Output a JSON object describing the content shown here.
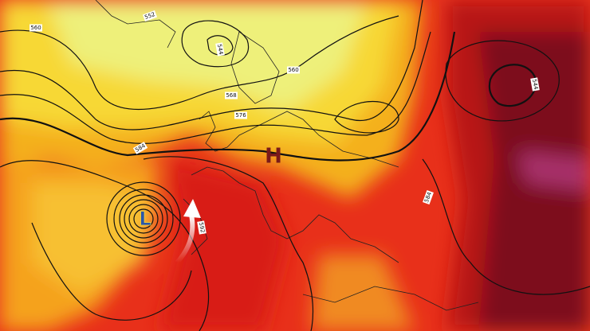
{
  "map": {
    "pressure_centers": [
      {
        "label": "H"
      },
      {
        "label": "L"
      }
    ],
    "contour_labels": [
      560,
      552,
      544,
      568,
      576,
      584,
      592,
      584,
      560,
      544
    ]
  }
}
